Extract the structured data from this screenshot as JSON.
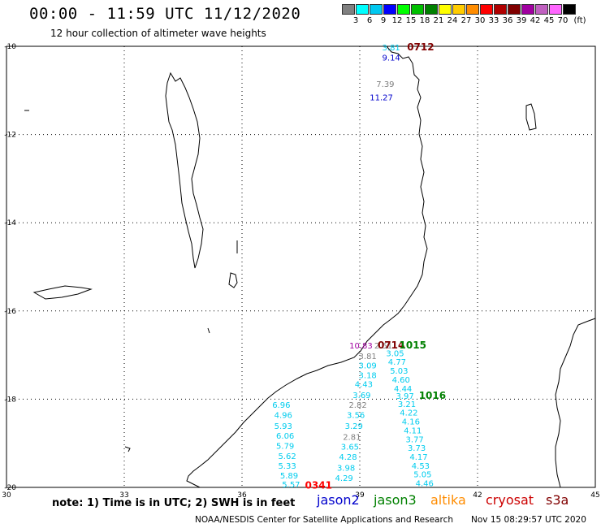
{
  "header": {
    "title": "00:00 - 11:59 UTC 11/12/2020",
    "subtitle": "12 hour collection of altimeter wave heights"
  },
  "scale": {
    "unit": "(ft)",
    "bins": [
      {
        "label": "",
        "color": "#808080"
      },
      {
        "label": "3",
        "color": "#00ffff"
      },
      {
        "label": "6",
        "color": "#00c8f0"
      },
      {
        "label": "9",
        "color": "#0000ff"
      },
      {
        "label": "12",
        "color": "#00ff00"
      },
      {
        "label": "15",
        "color": "#00c000"
      },
      {
        "label": "18",
        "color": "#008000"
      },
      {
        "label": "21",
        "color": "#ffff00"
      },
      {
        "label": "24",
        "color": "#ffcc00"
      },
      {
        "label": "27",
        "color": "#ff8c00"
      },
      {
        "label": "30",
        "color": "#ff0000"
      },
      {
        "label": "33",
        "color": "#b00000"
      },
      {
        "label": "36",
        "color": "#800000"
      },
      {
        "label": "39",
        "color": "#a000a0"
      },
      {
        "label": "42",
        "color": "#c060c0"
      },
      {
        "label": "45",
        "color": "#ff66ff"
      },
      {
        "label": "70",
        "color": "#000000"
      }
    ]
  },
  "axes": {
    "lat_labels": [
      "-10",
      "-12",
      "-14",
      "-16",
      "-18",
      "-20"
    ],
    "lon_labels": [
      "30",
      "33",
      "36",
      "39",
      "42",
      "45"
    ]
  },
  "observations": [
    {
      "text": "3.81",
      "color": "#00ccee",
      "lon": 39.8,
      "lat": -10.02
    },
    {
      "text": "0712",
      "color": "#800000",
      "lon": 40.55,
      "lat": -10.02,
      "bold": true
    },
    {
      "text": "9.14",
      "color": "#0000cc",
      "lon": 39.8,
      "lat": -10.25
    },
    {
      "text": "7.39",
      "color": "#808080",
      "lon": 39.65,
      "lat": -10.85
    },
    {
      "text": "11.27",
      "color": "#0000cc",
      "lon": 39.55,
      "lat": -11.15
    },
    {
      "text": "10.83",
      "color": "#a000a0",
      "lon": 39.03,
      "lat": -16.78
    },
    {
      "text": "2.51",
      "color": "#808080",
      "lon": 39.6,
      "lat": -16.78
    },
    {
      "text": "0714",
      "color": "#800000",
      "lon": 39.8,
      "lat": -16.78,
      "bold": true
    },
    {
      "text": "1015",
      "color": "#008000",
      "lon": 40.35,
      "lat": -16.78,
      "bold": true
    },
    {
      "text": "3.81",
      "color": "#808080",
      "lon": 39.2,
      "lat": -17.02
    },
    {
      "text": "3.05",
      "color": "#00ccee",
      "lon": 39.9,
      "lat": -16.95
    },
    {
      "text": "3.09",
      "color": "#00ccee",
      "lon": 39.2,
      "lat": -17.23
    },
    {
      "text": "4.77",
      "color": "#00ccee",
      "lon": 39.95,
      "lat": -17.15
    },
    {
      "text": "3.18",
      "color": "#00ccee",
      "lon": 39.2,
      "lat": -17.45
    },
    {
      "text": "5.03",
      "color": "#00ccee",
      "lon": 40.0,
      "lat": -17.35
    },
    {
      "text": "4.43",
      "color": "#00ccee",
      "lon": 39.1,
      "lat": -17.65
    },
    {
      "text": "4.60",
      "color": "#00ccee",
      "lon": 40.05,
      "lat": -17.55
    },
    {
      "text": "4.44",
      "color": "#00ccee",
      "lon": 40.1,
      "lat": -17.75
    },
    {
      "text": "3.69",
      "color": "#00ccee",
      "lon": 39.05,
      "lat": -17.9
    },
    {
      "text": "3.97",
      "color": "#00ccee",
      "lon": 40.15,
      "lat": -17.92
    },
    {
      "text": "1016",
      "color": "#008000",
      "lon": 40.85,
      "lat": -17.92,
      "bold": true
    },
    {
      "text": "2.82",
      "color": "#808080",
      "lon": 38.95,
      "lat": -18.12
    },
    {
      "text": "3.21",
      "color": "#00ccee",
      "lon": 40.2,
      "lat": -18.1
    },
    {
      "text": "6.96",
      "color": "#00ccee",
      "lon": 37.0,
      "lat": -18.12
    },
    {
      "text": "3.56",
      "color": "#00ccee",
      "lon": 38.9,
      "lat": -18.35
    },
    {
      "text": "4.22",
      "color": "#00ccee",
      "lon": 40.25,
      "lat": -18.3
    },
    {
      "text": "4.96",
      "color": "#00ccee",
      "lon": 37.05,
      "lat": -18.35
    },
    {
      "text": "3.29",
      "color": "#00ccee",
      "lon": 38.85,
      "lat": -18.6
    },
    {
      "text": "4.16",
      "color": "#00ccee",
      "lon": 40.3,
      "lat": -18.5
    },
    {
      "text": "5.93",
      "color": "#00ccee",
      "lon": 37.05,
      "lat": -18.6
    },
    {
      "text": "4.11",
      "color": "#00ccee",
      "lon": 40.35,
      "lat": -18.7
    },
    {
      "text": "2.81",
      "color": "#808080",
      "lon": 38.8,
      "lat": -18.85
    },
    {
      "text": "6.06",
      "color": "#00ccee",
      "lon": 37.1,
      "lat": -18.82
    },
    {
      "text": "3.77",
      "color": "#00ccee",
      "lon": 40.4,
      "lat": -18.9
    },
    {
      "text": "3.65",
      "color": "#00ccee",
      "lon": 38.75,
      "lat": -19.07
    },
    {
      "text": "5.79",
      "color": "#00ccee",
      "lon": 37.1,
      "lat": -19.05
    },
    {
      "text": "3.73",
      "color": "#00ccee",
      "lon": 40.45,
      "lat": -19.1
    },
    {
      "text": "4.28",
      "color": "#00ccee",
      "lon": 38.7,
      "lat": -19.3
    },
    {
      "text": "5.62",
      "color": "#00ccee",
      "lon": 37.15,
      "lat": -19.28
    },
    {
      "text": "4.17",
      "color": "#00ccee",
      "lon": 40.5,
      "lat": -19.3
    },
    {
      "text": "3.98",
      "color": "#00ccee",
      "lon": 38.65,
      "lat": -19.55
    },
    {
      "text": "5.33",
      "color": "#00ccee",
      "lon": 37.15,
      "lat": -19.5
    },
    {
      "text": "4.53",
      "color": "#00ccee",
      "lon": 40.55,
      "lat": -19.5
    },
    {
      "text": "5.89",
      "color": "#00ccee",
      "lon": 37.2,
      "lat": -19.72
    },
    {
      "text": "4.29",
      "color": "#00ccee",
      "lon": 38.6,
      "lat": -19.78
    },
    {
      "text": "5.05",
      "color": "#00ccee",
      "lon": 40.6,
      "lat": -19.7
    },
    {
      "text": "5.57",
      "color": "#00ccee",
      "lon": 37.25,
      "lat": -19.93
    },
    {
      "text": "0341",
      "color": "#ff0000",
      "lon": 37.95,
      "lat": -19.95,
      "bold": true
    },
    {
      "text": "4.46",
      "color": "#00ccee",
      "lon": 40.65,
      "lat": -19.9
    }
  ],
  "footer": {
    "note": "note: 1) Time is in UTC; 2) SWH is in feet",
    "satellites": [
      {
        "name": "jason2",
        "color": "#0000cc"
      },
      {
        "name": "jason3",
        "color": "#008000"
      },
      {
        "name": "altika",
        "color": "#ff8c00"
      },
      {
        "name": "cryosat",
        "color": "#cc0000"
      },
      {
        "name": "s3a",
        "color": "#800000"
      }
    ],
    "credit": "NOAA/NESDIS Center for Satellite Applications and Research",
    "timestamp": "Nov 15 08:29:57 UTC 2020"
  }
}
